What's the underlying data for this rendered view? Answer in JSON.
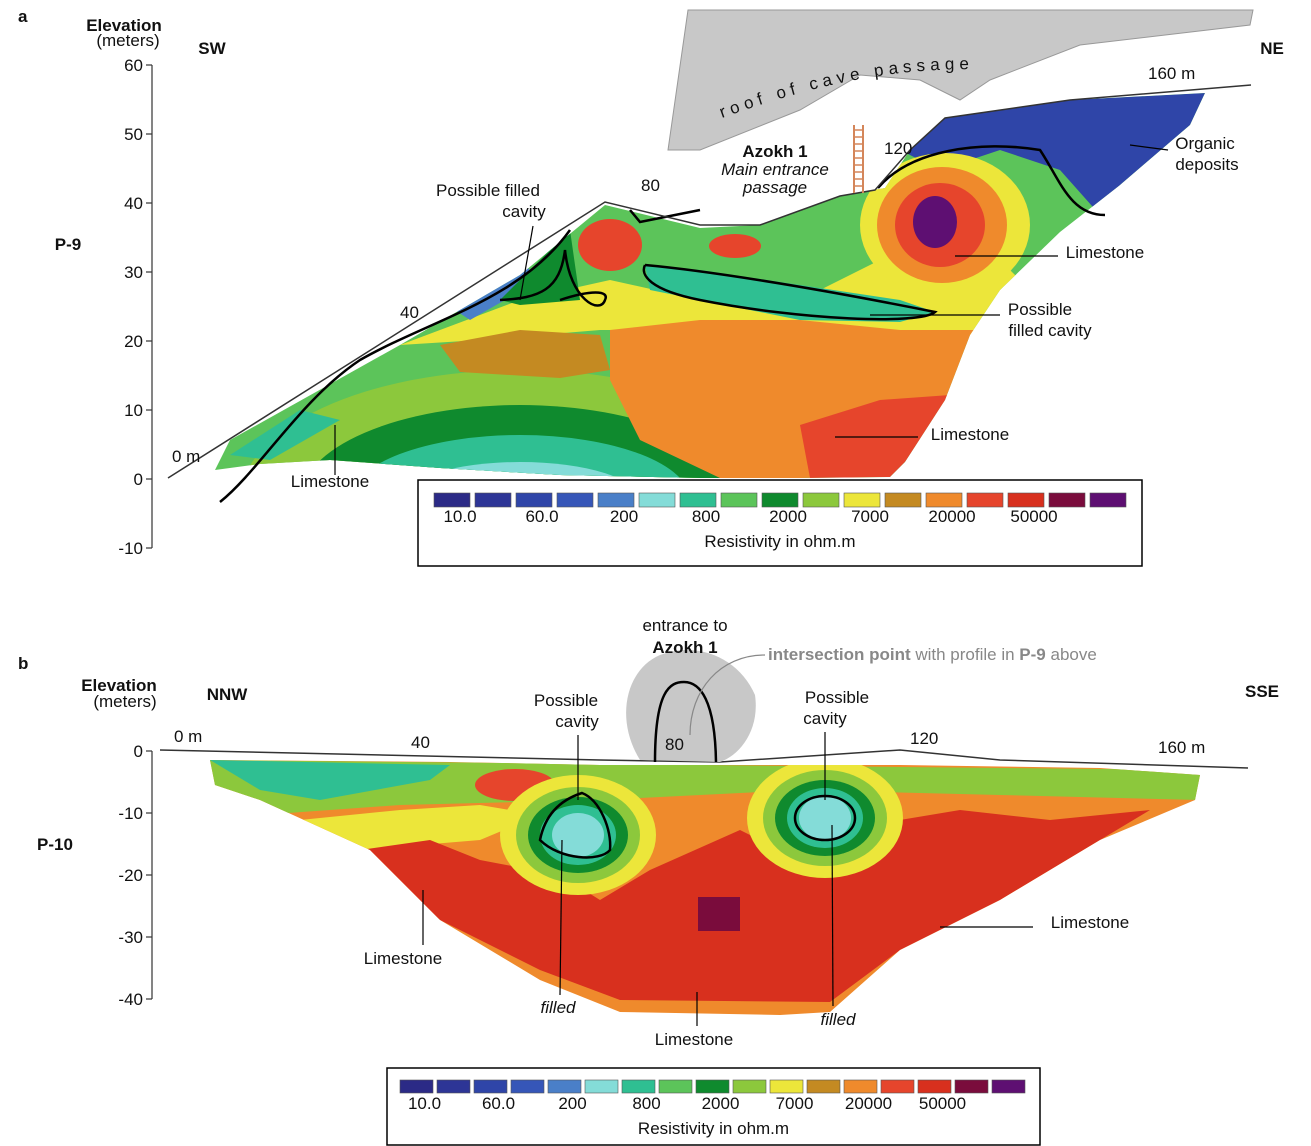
{
  "panels": [
    {
      "letter": "a",
      "profile": "P-9",
      "axis_title": "Elevation",
      "axis_unit": "(meters)",
      "elevation_ticks": [
        60,
        50,
        40,
        30,
        20,
        10,
        0,
        -10
      ],
      "left_direction": "SW",
      "right_direction": "NE",
      "distance_marks": [
        "0 m",
        "40",
        "80",
        "120",
        "160 m"
      ],
      "cave_label": "roof of cave passage",
      "site": {
        "name": "Azokh 1",
        "lines": [
          "Main entrance",
          "passage"
        ]
      },
      "annotations": [
        [
          "Possible filled",
          "cavity"
        ],
        [
          "Organic",
          "deposits"
        ],
        [
          "Limestone"
        ],
        [
          "Possible",
          "filled cavity"
        ],
        [
          "Limestone"
        ],
        [
          "Limestone"
        ]
      ]
    },
    {
      "letter": "b",
      "profile": "P-10",
      "axis_title": "Elevation",
      "axis_unit": "(meters)",
      "elevation_ticks": [
        0,
        -10,
        -20,
        -30,
        -40
      ],
      "left_direction": "NNW",
      "right_direction": "SSE",
      "distance_marks": [
        "0 m",
        "40",
        "80",
        "120",
        "160 m"
      ],
      "entrance": [
        "entrance to",
        "Azokh 1"
      ],
      "intersection": [
        "intersection point",
        " with profile in ",
        "P-9",
        " above"
      ],
      "annotations": [
        [
          "Possible",
          "cavity"
        ],
        [
          "Possible",
          "cavity"
        ],
        [
          "Limestone"
        ],
        [
          "Limestone"
        ],
        [
          "filled"
        ],
        [
          "filled"
        ],
        [
          "Limestone"
        ]
      ]
    }
  ],
  "legend": {
    "colors": [
      "#2b2a86",
      "#2d3596",
      "#2f45a8",
      "#3656b8",
      "#4a7fc8",
      "#84dcd8",
      "#2fbf92",
      "#5cc45a",
      "#0f8a2e",
      "#8cc83c",
      "#ece63a",
      "#c48a22",
      "#ef8a2c",
      "#e6452c",
      "#d8301e",
      "#7a0c3c",
      "#5e0f72"
    ],
    "labels": [
      "10.0",
      "60.0",
      "200",
      "800",
      "2000",
      "7000",
      "20000",
      "50000"
    ],
    "title": "Resistivity in ohm.m"
  }
}
